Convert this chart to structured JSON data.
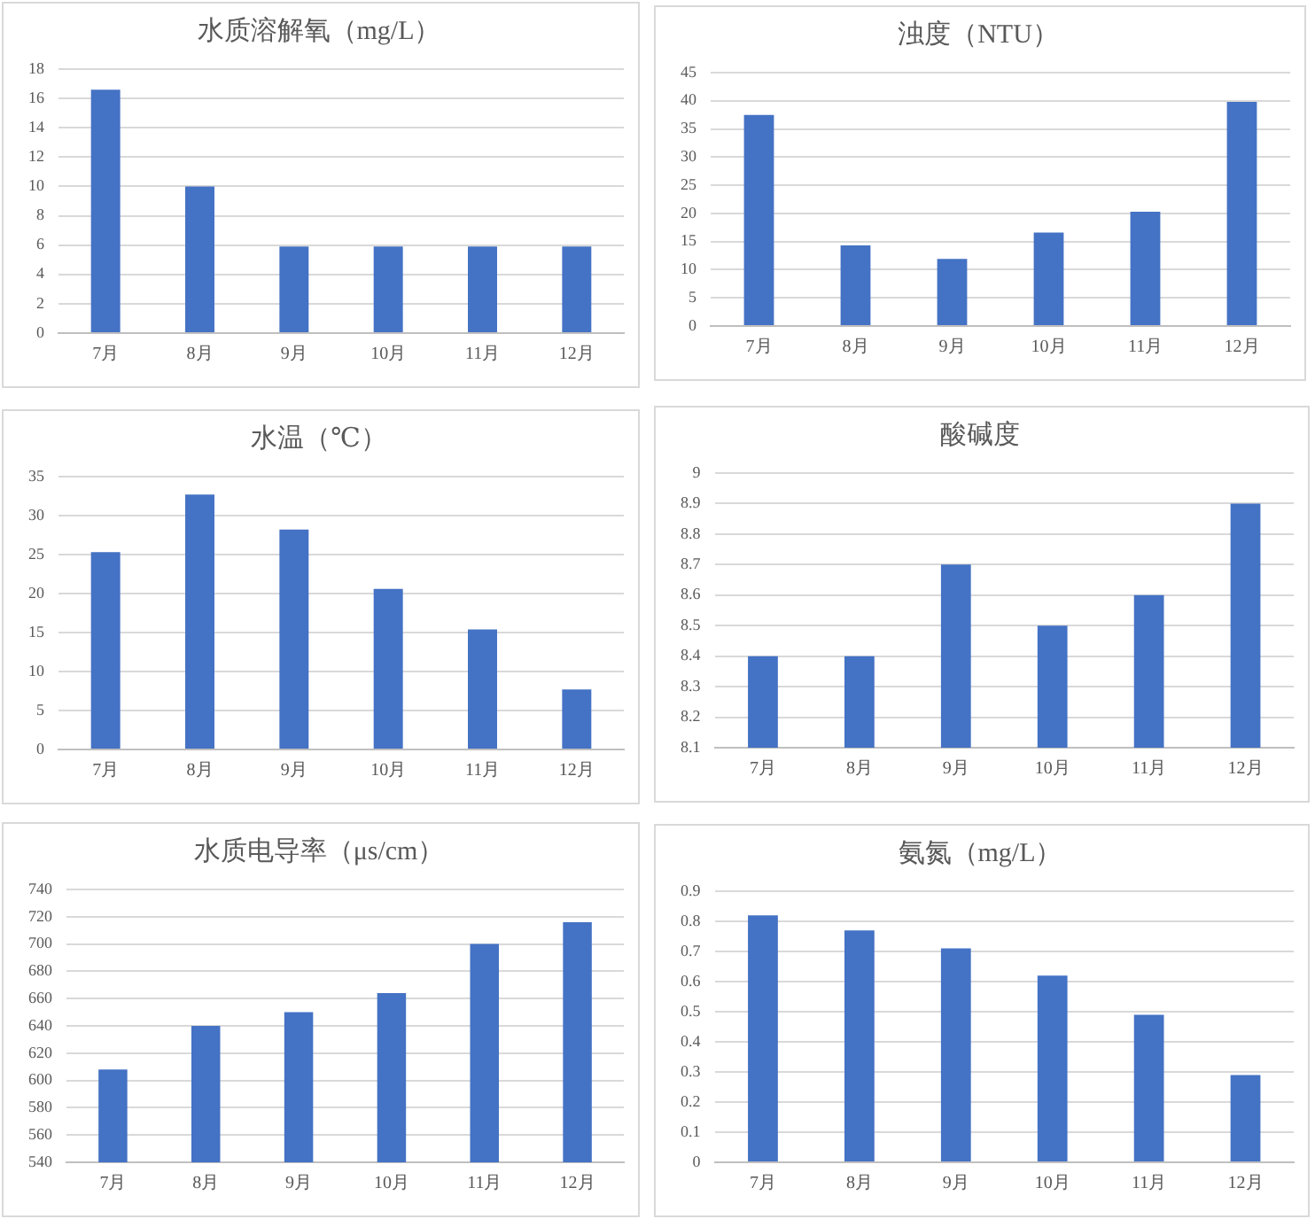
{
  "chart_data": [
    {
      "type": "bar",
      "title": "水质溶解氧（mg/L）",
      "categories": [
        "7月",
        "8月",
        "9月",
        "10月",
        "11月",
        "12月"
      ],
      "values": [
        16.6,
        10.0,
        5.9,
        5.9,
        5.9,
        5.9
      ],
      "color": "#4472c4",
      "ylim": [
        0,
        18
      ],
      "yticks": [
        0,
        2,
        4,
        6,
        8,
        10,
        12,
        14,
        16,
        18
      ],
      "grid": "y"
    },
    {
      "type": "bar",
      "title": "浊度（NTU）",
      "categories": [
        "7月",
        "8月",
        "9月",
        "10月",
        "11月",
        "12月"
      ],
      "values": [
        37.5,
        14.3,
        11.9,
        16.6,
        20.3,
        39.8
      ],
      "color": "#4472c4",
      "ylim": [
        0,
        45
      ],
      "yticks": [
        0,
        5,
        10,
        15,
        20,
        25,
        30,
        35,
        40,
        45
      ],
      "grid": "y"
    },
    {
      "type": "bar",
      "title": "水温（℃）",
      "categories": [
        "7月",
        "8月",
        "9月",
        "10月",
        "11月",
        "12月"
      ],
      "values": [
        25.3,
        32.7,
        28.2,
        20.6,
        15.4,
        7.7
      ],
      "color": "#4472c4",
      "ylim": [
        0,
        35
      ],
      "yticks": [
        0,
        5,
        10,
        15,
        20,
        25,
        30,
        35
      ],
      "grid": "y"
    },
    {
      "type": "bar",
      "title": "酸碱度",
      "categories": [
        "7月",
        "8月",
        "9月",
        "10月",
        "11月",
        "12月"
      ],
      "values": [
        8.4,
        8.4,
        8.7,
        8.5,
        8.6,
        8.9
      ],
      "color": "#4472c4",
      "ylim": [
        8.1,
        9
      ],
      "yticks": [
        8.1,
        8.2,
        8.3,
        8.4,
        8.5,
        8.6,
        8.7,
        8.8,
        8.9,
        9
      ],
      "grid": "y"
    },
    {
      "type": "bar",
      "title": "水质电导率（μs/cm）",
      "categories": [
        "7月",
        "8月",
        "9月",
        "10月",
        "11月",
        "12月"
      ],
      "values": [
        608,
        640,
        650,
        664,
        700,
        716
      ],
      "color": "#4472c4",
      "ylim": [
        540,
        740
      ],
      "yticks": [
        540,
        560,
        580,
        600,
        620,
        640,
        660,
        680,
        700,
        720,
        740
      ],
      "grid": "y"
    },
    {
      "type": "bar",
      "title": "氨氮（mg/L）",
      "categories": [
        "7月",
        "8月",
        "9月",
        "10月",
        "11月",
        "12月"
      ],
      "values": [
        0.82,
        0.77,
        0.71,
        0.62,
        0.49,
        0.29
      ],
      "color": "#4472c4",
      "ylim": [
        0,
        0.9
      ],
      "yticks": [
        0,
        0.1,
        0.2,
        0.3,
        0.4,
        0.5,
        0.6,
        0.7,
        0.8,
        0.9
      ],
      "grid": "y"
    }
  ]
}
